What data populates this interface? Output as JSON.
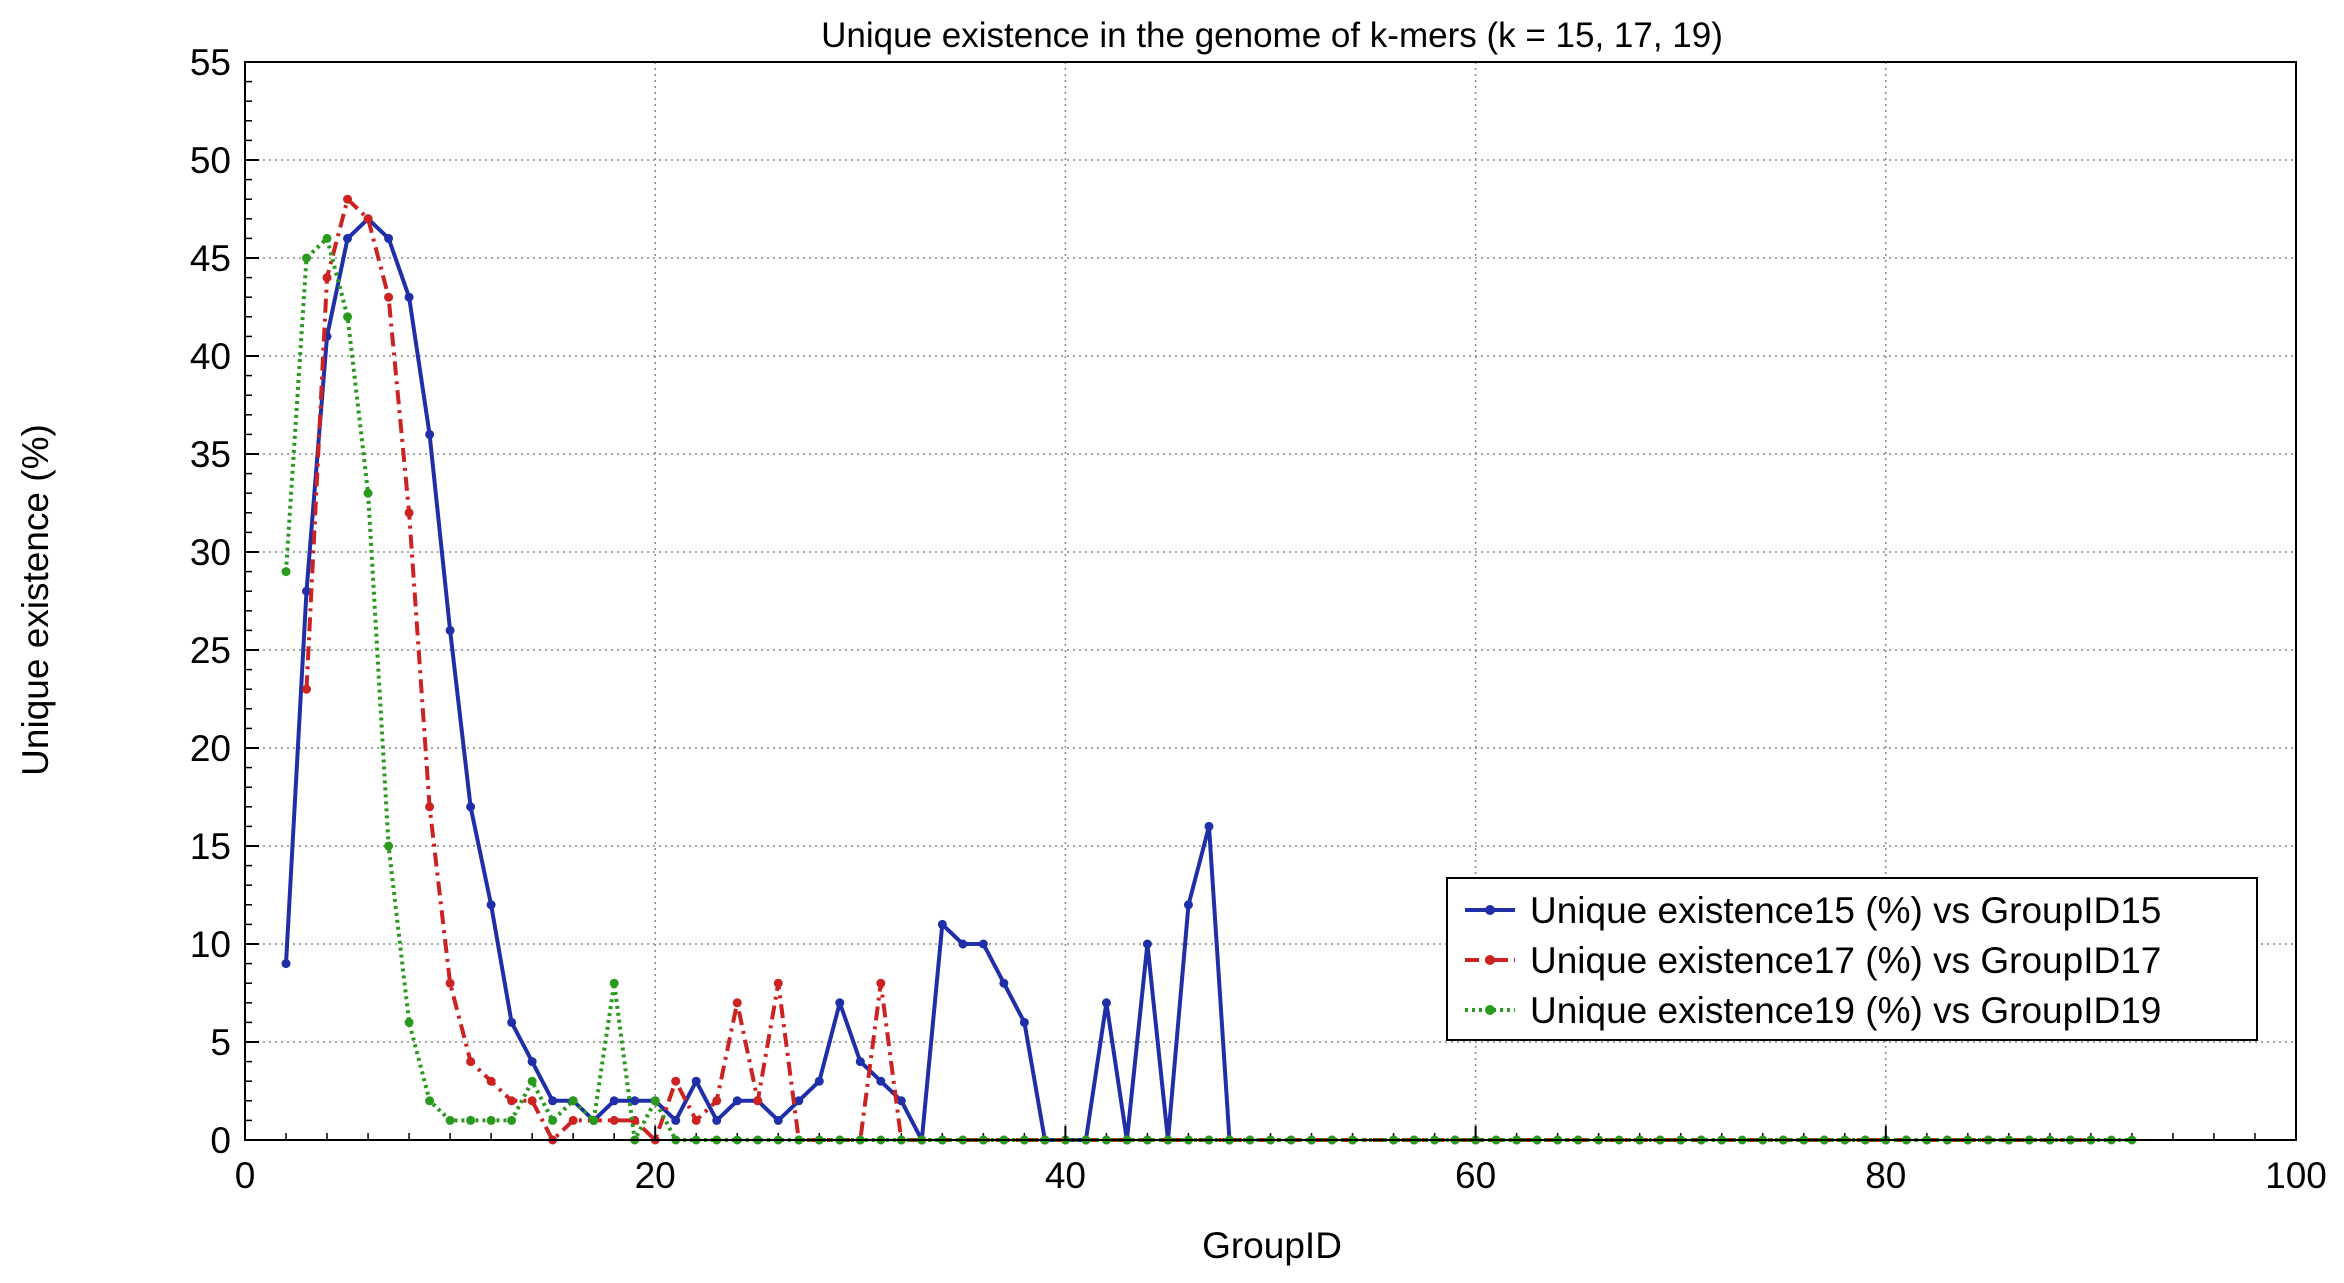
{
  "chart_data": {
    "type": "line",
    "title": "Unique existence in the genome of k-mers (k = 15, 17, 19)",
    "xlabel": "GroupID",
    "ylabel": "Unique existence (%)",
    "xlim": [
      0,
      100
    ],
    "ylim": [
      0,
      55
    ],
    "xticks": [
      0,
      20,
      40,
      60,
      80,
      100
    ],
    "yticks": [
      0,
      5,
      10,
      15,
      20,
      25,
      30,
      35,
      40,
      45,
      50,
      55
    ],
    "grid": true,
    "legend_position": "lower-right",
    "series": [
      {
        "name": "Unique existence15 (%) vs GroupID15",
        "color": "#1f2fa8",
        "line_style": "solid",
        "x": [
          2,
          3,
          4,
          5,
          6,
          7,
          8,
          9,
          10,
          11,
          12,
          13,
          14,
          15,
          16,
          17,
          18,
          19,
          20,
          21,
          22,
          23,
          24,
          25,
          26,
          27,
          28,
          29,
          30,
          31,
          32,
          33,
          34,
          35,
          36,
          37,
          38,
          39,
          40,
          41,
          42,
          43,
          44,
          45,
          46,
          47,
          48
        ],
        "y": [
          9,
          28,
          41,
          46,
          47,
          46,
          43,
          36,
          26,
          17,
          12,
          6,
          4,
          2,
          2,
          1,
          2,
          2,
          2,
          1,
          3,
          1,
          2,
          2,
          1,
          2,
          3,
          7,
          4,
          3,
          2,
          0,
          11,
          10,
          10,
          8,
          6,
          0,
          0,
          0,
          7,
          0,
          10,
          0,
          12,
          16,
          0
        ]
      },
      {
        "name": "Unique existence17 (%) vs GroupID17",
        "color": "#cc2222",
        "line_style": "dashdot",
        "x": [
          3,
          4,
          5,
          6,
          7,
          8,
          9,
          10,
          11,
          12,
          13,
          14,
          15,
          16,
          17,
          18,
          19,
          20,
          21,
          22,
          23,
          24,
          25,
          26,
          27,
          28,
          29,
          30,
          31,
          32,
          33,
          34,
          35,
          36,
          37,
          38,
          39,
          40,
          41,
          42,
          43,
          44,
          45,
          46,
          47,
          48,
          49,
          50,
          51,
          52,
          53,
          54,
          56,
          57,
          58,
          59,
          60,
          61,
          62,
          63,
          64,
          65,
          66,
          68,
          69,
          70,
          71,
          72,
          74,
          75,
          76,
          77,
          78,
          79,
          80,
          81,
          82,
          83,
          84,
          85,
          86,
          87,
          88,
          89,
          90
        ],
        "y": [
          23,
          44,
          48,
          47,
          43,
          32,
          17,
          8,
          4,
          3,
          2,
          2,
          0,
          1,
          1,
          1,
          1,
          0,
          3,
          1,
          2,
          7,
          2,
          8,
          0,
          0,
          0,
          0,
          8,
          0,
          0,
          0,
          0,
          0,
          0,
          0,
          0,
          0,
          0,
          0,
          0,
          0,
          0,
          0,
          0,
          0,
          0,
          0,
          0,
          0,
          0,
          0,
          0,
          0,
          0,
          0,
          0,
          0,
          0,
          0,
          0,
          0,
          0,
          0,
          0,
          0,
          0,
          0,
          0,
          0,
          0,
          0,
          0,
          0,
          0,
          0,
          0,
          0,
          0,
          0,
          0,
          0,
          0,
          0,
          0
        ]
      },
      {
        "name": "Unique existence19 (%) vs GroupID19",
        "color": "#2a9a1f",
        "line_style": "dotted",
        "x": [
          2,
          3,
          4,
          5,
          6,
          7,
          8,
          9,
          10,
          11,
          12,
          13,
          14,
          15,
          16,
          17,
          18,
          19,
          20,
          21,
          22,
          23,
          24,
          25,
          26,
          27,
          28,
          29,
          30,
          31,
          32,
          33,
          34,
          35,
          36,
          37,
          38,
          39,
          40,
          41,
          42,
          43,
          44,
          45,
          46,
          47,
          48,
          49,
          50,
          51,
          52,
          53,
          54,
          56,
          57,
          58,
          59,
          60,
          61,
          62,
          63,
          64,
          65,
          66,
          67,
          68,
          69,
          70,
          71,
          72,
          73,
          74,
          75,
          76,
          77,
          78,
          79,
          80,
          81,
          82,
          83,
          84,
          85,
          86,
          87,
          88,
          89,
          90,
          91,
          92
        ],
        "y": [
          29,
          45,
          46,
          42,
          33,
          15,
          6,
          2,
          1,
          1,
          1,
          1,
          3,
          1,
          2,
          1,
          8,
          0,
          2,
          0,
          0,
          0,
          0,
          0,
          0,
          0,
          0,
          0,
          0,
          0,
          0,
          0,
          0,
          0,
          0,
          0,
          0,
          0,
          0,
          0,
          0,
          0,
          0,
          0,
          0,
          0,
          0,
          0,
          0,
          0,
          0,
          0,
          0,
          0,
          0,
          0,
          0,
          0,
          0,
          0,
          0,
          0,
          0,
          0,
          0,
          0,
          0,
          0,
          0,
          0,
          0,
          0,
          0,
          0,
          0,
          0,
          0,
          0,
          0,
          0,
          0,
          0,
          0,
          0,
          0,
          0,
          0,
          0,
          0,
          0
        ]
      }
    ]
  }
}
